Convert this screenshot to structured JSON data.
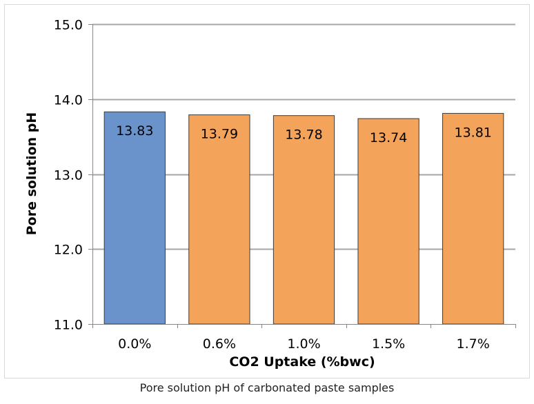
{
  "chart_data": {
    "type": "bar",
    "categories": [
      "0.0%",
      "0.6%",
      "1.0%",
      "1.5%",
      "1.7%"
    ],
    "values": [
      13.83,
      13.79,
      13.78,
      13.74,
      13.81
    ],
    "data_labels": [
      "13.83",
      "13.79",
      "13.78",
      "13.74",
      "13.81"
    ],
    "bar_colors": [
      "#6a93cc",
      "#f3a35a",
      "#f3a35a",
      "#f3a35a",
      "#f3a35a"
    ],
    "xlabel": "CO2 Uptake (%bwc)",
    "ylabel": "Pore solution pH",
    "ylim": [
      11.0,
      15.0
    ],
    "yticks": [
      11.0,
      12.0,
      13.0,
      14.0,
      15.0
    ],
    "ytick_labels": [
      "11.0",
      "12.0",
      "13.0",
      "14.0",
      "15.0"
    ],
    "grid": true,
    "legend": false
  },
  "caption": "Pore solution pH of carbonated paste samples"
}
